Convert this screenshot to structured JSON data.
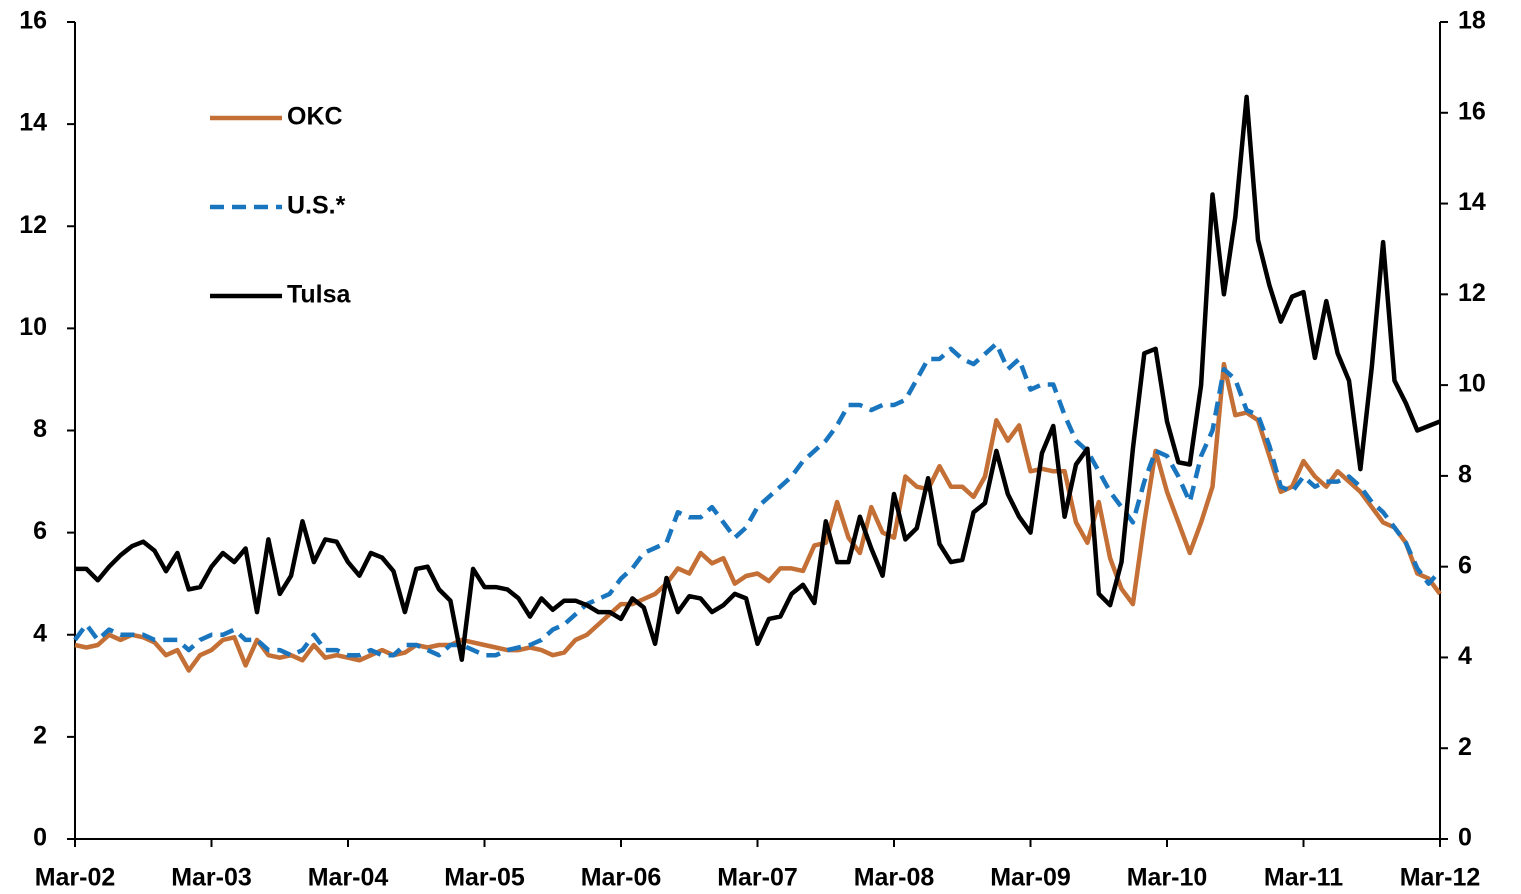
{
  "chart_data": {
    "type": "line",
    "categories": [
      "Mar-02",
      null,
      null,
      null,
      null,
      null,
      null,
      null,
      null,
      null,
      null,
      null,
      "Mar-03",
      null,
      null,
      null,
      null,
      null,
      null,
      null,
      null,
      null,
      null,
      null,
      "Mar-04",
      null,
      null,
      null,
      null,
      null,
      null,
      null,
      null,
      null,
      null,
      null,
      "Mar-05",
      null,
      null,
      null,
      null,
      null,
      null,
      null,
      null,
      null,
      null,
      null,
      "Mar-06",
      null,
      null,
      null,
      null,
      null,
      null,
      null,
      null,
      null,
      null,
      null,
      "Mar-07",
      null,
      null,
      null,
      null,
      null,
      null,
      null,
      null,
      null,
      null,
      null,
      "Mar-08",
      null,
      null,
      null,
      null,
      null,
      null,
      null,
      null,
      null,
      null,
      null,
      "Mar-09",
      null,
      null,
      null,
      null,
      null,
      null,
      null,
      null,
      null,
      null,
      null,
      "Mar-10",
      null,
      null,
      null,
      null,
      null,
      null,
      null,
      null,
      null,
      null,
      null,
      "Mar-11",
      null,
      null,
      null,
      null,
      null,
      null,
      null,
      null,
      null,
      null,
      null,
      "Mar-12"
    ],
    "series": [
      {
        "name": "OKC",
        "color": "#c46f35",
        "line_style": "solid",
        "axis": "y",
        "values": [
          3.8,
          3.75,
          3.8,
          4.0,
          3.9,
          4.0,
          3.95,
          3.85,
          3.6,
          3.7,
          3.3,
          3.6,
          3.7,
          3.9,
          3.95,
          3.4,
          3.9,
          3.6,
          3.55,
          3.6,
          3.5,
          3.8,
          3.55,
          3.6,
          3.55,
          3.5,
          3.6,
          3.7,
          3.6,
          3.65,
          3.8,
          3.75,
          3.8,
          3.8,
          3.9,
          3.85,
          3.8,
          3.75,
          3.7,
          3.7,
          3.75,
          3.7,
          3.6,
          3.65,
          3.9,
          4.0,
          4.2,
          4.4,
          4.6,
          4.6,
          4.7,
          4.8,
          5.0,
          5.3,
          5.2,
          5.6,
          5.4,
          5.5,
          5.0,
          5.15,
          5.2,
          5.05,
          5.3,
          5.3,
          5.25,
          5.75,
          5.8,
          6.6,
          5.9,
          5.6,
          6.5,
          6.0,
          5.9,
          7.1,
          6.9,
          6.85,
          7.3,
          6.9,
          6.9,
          6.7,
          7.1,
          8.2,
          7.8,
          8.1,
          7.2,
          7.25,
          7.2,
          7.2,
          6.2,
          5.8,
          6.6,
          5.5,
          4.9,
          4.6,
          6.2,
          7.6,
          6.8,
          6.2,
          5.6,
          6.2,
          6.9,
          9.3,
          8.3,
          8.35,
          8.2,
          7.5,
          6.8,
          6.9,
          7.4,
          7.1,
          6.9,
          7.2,
          7.0,
          6.8,
          6.5,
          6.2,
          6.1,
          5.8,
          5.2,
          5.1,
          4.8
        ]
      },
      {
        "name": "U.S.*",
        "color": "#1a75bf",
        "line_style": "dashed",
        "axis": "y",
        "values": [
          3.9,
          4.2,
          3.9,
          4.1,
          4.0,
          4.0,
          4.0,
          3.9,
          3.9,
          3.9,
          3.7,
          3.9,
          4.0,
          4.0,
          4.1,
          3.9,
          3.9,
          3.7,
          3.7,
          3.6,
          3.7,
          4.0,
          3.7,
          3.7,
          3.6,
          3.6,
          3.7,
          3.6,
          3.6,
          3.8,
          3.8,
          3.7,
          3.6,
          3.8,
          3.8,
          3.7,
          3.6,
          3.6,
          3.7,
          3.75,
          3.8,
          3.9,
          4.1,
          4.2,
          4.4,
          4.6,
          4.7,
          4.8,
          5.1,
          5.3,
          5.6,
          5.7,
          5.8,
          6.4,
          6.3,
          6.3,
          6.5,
          6.2,
          5.9,
          6.1,
          6.5,
          6.7,
          6.9,
          7.1,
          7.4,
          7.6,
          7.8,
          8.1,
          8.5,
          8.5,
          8.4,
          8.5,
          8.5,
          8.6,
          9.0,
          9.4,
          9.4,
          9.6,
          9.4,
          9.3,
          9.5,
          9.7,
          9.2,
          9.4,
          8.8,
          8.9,
          8.9,
          8.3,
          7.8,
          7.6,
          7.2,
          6.8,
          6.5,
          6.2,
          7.0,
          7.6,
          7.5,
          7.1,
          6.6,
          7.5,
          8.0,
          9.2,
          9.0,
          8.4,
          8.3,
          7.7,
          6.9,
          6.8,
          7.1,
          6.9,
          7.0,
          7.0,
          7.1,
          6.9,
          6.6,
          6.4,
          6.1,
          5.8,
          5.3,
          5.0,
          5.25
        ]
      },
      {
        "name": "Tulsa",
        "color": "#000000",
        "line_style": "solid",
        "axis": "y2",
        "values": [
          5.95,
          5.95,
          5.7,
          6.0,
          6.25,
          6.45,
          6.55,
          6.35,
          5.9,
          6.3,
          5.5,
          5.55,
          6.0,
          6.3,
          6.1,
          6.4,
          5.0,
          6.6,
          5.4,
          5.8,
          7.0,
          6.1,
          6.6,
          6.55,
          6.1,
          5.8,
          6.3,
          6.2,
          5.9,
          5.0,
          5.95,
          6.0,
          5.5,
          5.25,
          3.95,
          5.95,
          5.55,
          5.55,
          5.5,
          5.3,
          4.9,
          5.3,
          5.05,
          5.25,
          5.25,
          5.15,
          5.0,
          5.0,
          4.85,
          5.3,
          5.1,
          4.3,
          5.75,
          5.0,
          5.35,
          5.3,
          5.0,
          5.15,
          5.4,
          5.3,
          4.3,
          4.85,
          4.9,
          5.4,
          5.6,
          5.2,
          7.0,
          6.1,
          6.1,
          7.1,
          6.4,
          5.8,
          7.6,
          6.6,
          6.85,
          7.95,
          6.5,
          6.1,
          6.15,
          7.2,
          7.4,
          8.55,
          7.6,
          7.1,
          6.75,
          8.5,
          9.1,
          7.1,
          8.25,
          8.6,
          5.4,
          5.15,
          6.1,
          8.6,
          10.7,
          10.8,
          9.2,
          8.3,
          8.25,
          10.0,
          14.2,
          12.0,
          13.7,
          16.35,
          13.2,
          12.2,
          11.4,
          11.95,
          12.05,
          10.6,
          11.85,
          10.7,
          10.1,
          8.15,
          10.4,
          13.15,
          10.1,
          9.6,
          9.0,
          9.1,
          9.2
        ]
      }
    ],
    "ylim": [
      0,
      16
    ],
    "yticks": [
      0,
      2,
      4,
      6,
      8,
      10,
      12,
      14,
      16
    ],
    "y2lim": [
      0,
      18
    ],
    "y2ticks": [
      0,
      2,
      4,
      6,
      8,
      10,
      12,
      14,
      16,
      18
    ],
    "legend": "upper left",
    "grid": false
  }
}
